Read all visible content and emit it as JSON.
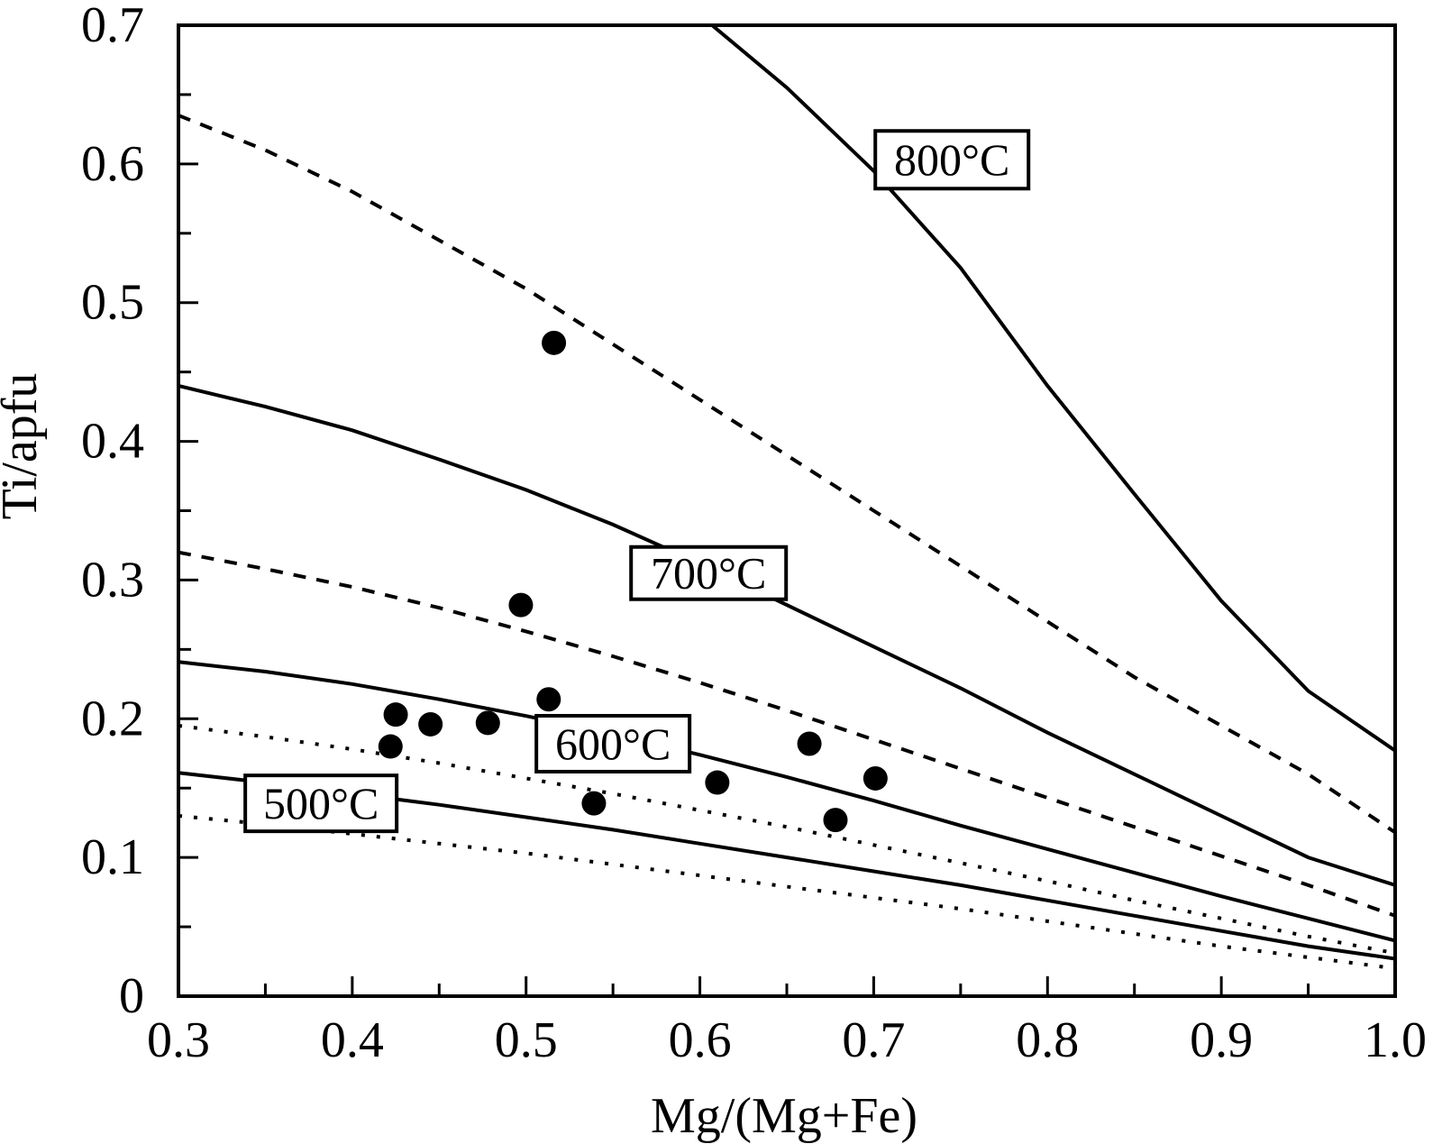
{
  "chart_data": {
    "type": "scatter",
    "xlabel": "Mg/(Mg+Fe)",
    "ylabel": "Ti/apfu",
    "xlim": [
      0.3,
      1.0
    ],
    "ylim": [
      0,
      0.7
    ],
    "x_ticks": [
      0.3,
      0.4,
      0.5,
      0.6,
      0.7,
      0.8,
      0.9,
      1.0
    ],
    "x_tick_labels": [
      "0.3",
      "0.4",
      "0.5",
      "0.6",
      "0.7",
      "0.8",
      "0.9",
      "1.0"
    ],
    "y_ticks": [
      0,
      0.1,
      0.2,
      0.3,
      0.4,
      0.5,
      0.6,
      0.7
    ],
    "y_tick_labels": [
      "0",
      "0.1",
      "0.2",
      "0.3",
      "0.4",
      "0.5",
      "0.6",
      "0.7"
    ],
    "grid": false,
    "points": [
      {
        "x": 0.516,
        "y": 0.471
      },
      {
        "x": 0.497,
        "y": 0.282
      },
      {
        "x": 0.513,
        "y": 0.214
      },
      {
        "x": 0.425,
        "y": 0.203
      },
      {
        "x": 0.445,
        "y": 0.196
      },
      {
        "x": 0.478,
        "y": 0.197
      },
      {
        "x": 0.422,
        "y": 0.18
      },
      {
        "x": 0.663,
        "y": 0.182
      },
      {
        "x": 0.701,
        "y": 0.157
      },
      {
        "x": 0.61,
        "y": 0.154
      },
      {
        "x": 0.539,
        "y": 0.139
      },
      {
        "x": 0.678,
        "y": 0.127
      }
    ],
    "isotherms": [
      {
        "label": "800°C",
        "style": "solid",
        "x": [
          0.607,
          0.65,
          0.7,
          0.75,
          0.8,
          0.85,
          0.9,
          0.95,
          1.0
        ],
        "y": [
          0.7,
          0.655,
          0.595,
          0.525,
          0.44,
          0.362,
          0.285,
          0.22,
          0.177
        ]
      },
      {
        "label": "",
        "style": "dashed",
        "x": [
          0.3,
          0.35,
          0.4,
          0.45,
          0.5,
          0.55,
          0.6,
          0.65,
          0.7,
          0.75,
          0.8,
          0.85,
          0.9,
          0.95,
          1.0
        ],
        "y": [
          0.635,
          0.61,
          0.58,
          0.545,
          0.51,
          0.47,
          0.43,
          0.39,
          0.35,
          0.31,
          0.27,
          0.23,
          0.195,
          0.16,
          0.118
        ]
      },
      {
        "label": "700°C",
        "style": "solid",
        "x": [
          0.3,
          0.35,
          0.4,
          0.45,
          0.5,
          0.55,
          0.6,
          0.65,
          0.7,
          0.75,
          0.8,
          0.85,
          0.9,
          0.95,
          1.0
        ],
        "y": [
          0.44,
          0.425,
          0.408,
          0.387,
          0.365,
          0.34,
          0.312,
          0.282,
          0.252,
          0.222,
          0.19,
          0.16,
          0.13,
          0.1,
          0.08
        ]
      },
      {
        "label": "",
        "style": "dashed",
        "x": [
          0.3,
          0.35,
          0.4,
          0.45,
          0.5,
          0.55,
          0.6,
          0.65,
          0.7,
          0.75,
          0.8,
          0.85,
          0.9,
          0.95,
          1.0
        ],
        "y": [
          0.32,
          0.308,
          0.295,
          0.28,
          0.263,
          0.245,
          0.226,
          0.206,
          0.185,
          0.164,
          0.143,
          0.122,
          0.101,
          0.08,
          0.058
        ]
      },
      {
        "label": "600°C",
        "style": "solid",
        "x": [
          0.3,
          0.35,
          0.4,
          0.45,
          0.5,
          0.55,
          0.6,
          0.65,
          0.7,
          0.75,
          0.8,
          0.85,
          0.9,
          0.95,
          1.0
        ],
        "y": [
          0.241,
          0.234,
          0.225,
          0.214,
          0.202,
          0.189,
          0.174,
          0.158,
          0.141,
          0.123,
          0.106,
          0.089,
          0.072,
          0.056,
          0.04
        ]
      },
      {
        "label": "",
        "style": "dotted",
        "x": [
          0.3,
          0.35,
          0.4,
          0.45,
          0.5,
          0.55,
          0.6,
          0.65,
          0.7,
          0.75,
          0.8,
          0.85,
          0.9,
          0.95,
          1.0
        ],
        "y": [
          0.195,
          0.187,
          0.178,
          0.168,
          0.157,
          0.146,
          0.134,
          0.122,
          0.109,
          0.096,
          0.083,
          0.069,
          0.056,
          0.043,
          0.031
        ]
      },
      {
        "label": "500°C",
        "style": "solid",
        "x": [
          0.3,
          0.35,
          0.4,
          0.45,
          0.5,
          0.55,
          0.6,
          0.65,
          0.7,
          0.75,
          0.8,
          0.85,
          0.9,
          0.95,
          1.0
        ],
        "y": [
          0.161,
          0.154,
          0.146,
          0.138,
          0.129,
          0.12,
          0.11,
          0.1,
          0.09,
          0.08,
          0.069,
          0.058,
          0.047,
          0.036,
          0.027
        ]
      },
      {
        "label": "",
        "style": "dotted",
        "x": [
          0.3,
          0.35,
          0.4,
          0.45,
          0.5,
          0.55,
          0.6,
          0.65,
          0.7,
          0.75,
          0.8,
          0.85,
          0.9,
          0.95,
          1.0
        ],
        "y": [
          0.13,
          0.124,
          0.117,
          0.11,
          0.103,
          0.095,
          0.087,
          0.079,
          0.071,
          0.063,
          0.054,
          0.045,
          0.036,
          0.028,
          0.02
        ]
      }
    ],
    "legend": "none"
  }
}
